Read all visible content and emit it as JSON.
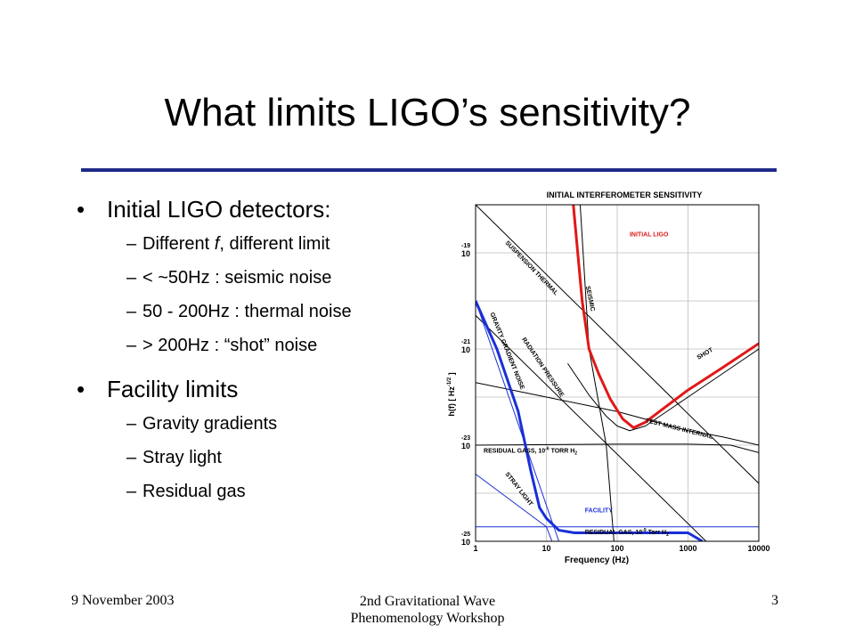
{
  "slide": {
    "title": "What limits LIGO’s sensitivity?",
    "bullets": [
      {
        "text": "Initial LIGO detectors:",
        "sub": [
          "Different f, different limit",
          "< ~50Hz : seismic noise",
          "50 - 200Hz : thermal noise",
          "> 200Hz  : “shot” noise"
        ]
      },
      {
        "text": "Facility limits",
        "sub": [
          "Gravity gradients",
          "Stray light",
          "Residual gas"
        ]
      }
    ],
    "bullet_glyph": "•",
    "dash_glyph": "–"
  },
  "footer": {
    "date": "9 November 2003",
    "workshop_line1": "2nd Gravitational Wave",
    "workshop_line2": "Phenomenology Workshop",
    "page": "3"
  },
  "chart_data": {
    "type": "line",
    "title": "INITIAL INTERFEROMETER SENSITIVITY",
    "xlabel": "Frequency (Hz)",
    "ylabel": "h(f) [ Hz -1/2 ]",
    "xscale": "log",
    "yscale": "log",
    "xlim": [
      1,
      10000
    ],
    "ylim": [
      1e-25,
      1e-18
    ],
    "x_ticks": [
      "1",
      "10",
      "100",
      "1000",
      "10000"
    ],
    "y_ticks": [
      {
        "base": "10",
        "exp": "-19",
        "value": 1e-19
      },
      {
        "base": "10",
        "exp": "-21",
        "value": 1e-21
      },
      {
        "base": "10",
        "exp": "-23",
        "value": 1e-23
      },
      {
        "base": "10",
        "exp": "-25",
        "value": 1e-25
      }
    ],
    "grid": true,
    "colors": {
      "initial": "#e01818",
      "facility": "#1a2fd8",
      "noise": "#000000",
      "grid": "#bdbdbd"
    },
    "series": [
      {
        "name": "INITIAL LIGO",
        "color": "#e01818",
        "width": 3,
        "points": [
          [
            24,
            1e-18
          ],
          [
            32,
            1e-20
          ],
          [
            40,
            1e-21
          ],
          [
            55,
            3e-22
          ],
          [
            80,
            9e-23
          ],
          [
            120,
            3.5e-23
          ],
          [
            170,
            2.3e-23
          ],
          [
            250,
            3e-23
          ],
          [
            500,
            6.5e-23
          ],
          [
            1000,
            1.4e-22
          ],
          [
            3000,
            4e-22
          ],
          [
            10000,
            1.3e-21
          ]
        ]
      },
      {
        "name": "FACILITY",
        "color": "#1a2fd8",
        "width": 3,
        "points": [
          [
            1,
            1e-20
          ],
          [
            2,
            1e-21
          ],
          [
            4,
            5e-23
          ],
          [
            6,
            3e-24
          ],
          [
            8,
            5e-25
          ],
          [
            10,
            3e-25
          ],
          [
            15,
            1.7e-25
          ],
          [
            25,
            1.5e-25
          ],
          [
            100,
            1.5e-25
          ],
          [
            1000,
            1.5e-25
          ],
          [
            1600,
            1e-25
          ]
        ]
      },
      {
        "name": "SUSPENSION THERMAL",
        "color": "#000000",
        "width": 1,
        "points": [
          [
            1,
            1e-18
          ],
          [
            10000,
            1.6e-24
          ]
        ]
      },
      {
        "name": "RADIATION PRESSURE",
        "color": "#000000",
        "width": 1,
        "points": [
          [
            1,
            5e-21
          ],
          [
            1800,
            1e-25
          ]
        ]
      },
      {
        "name": "SEISMIC",
        "color": "#000000",
        "width": 1,
        "points": [
          [
            30,
            1e-18
          ],
          [
            40,
            1e-21
          ],
          [
            70,
            1e-23
          ],
          [
            90,
            1e-25
          ]
        ]
      },
      {
        "name": "SHOT",
        "color": "#000000",
        "width": 1,
        "points": [
          [
            20,
            5e-22
          ],
          [
            40,
            1.1e-22
          ],
          [
            70,
            4e-23
          ],
          [
            100,
            2.5e-23
          ],
          [
            150,
            2e-23
          ],
          [
            250,
            2.5e-23
          ],
          [
            500,
            5e-23
          ],
          [
            1000,
            1e-22
          ],
          [
            3000,
            3e-22
          ],
          [
            10000,
            1e-21
          ]
        ]
      },
      {
        "name": "TEST MASS INTERNAL",
        "color": "#000000",
        "width": 1,
        "points": [
          [
            1,
            2e-22
          ],
          [
            10,
            1e-22
          ],
          [
            100,
            5e-23
          ],
          [
            1000,
            2e-23
          ],
          [
            3000,
            1.5e-23
          ],
          [
            10000,
            1e-23
          ]
        ]
      },
      {
        "name": "GRAVITY GRADIENT NOISE",
        "color": "#1a2fd8",
        "width": 1,
        "points": [
          [
            1,
            1e-20
          ],
          [
            15,
            1e-25
          ]
        ]
      },
      {
        "name": "RESIDUAL GASS, 10-6 TORR H2",
        "color": "#000000",
        "width": 1,
        "points": [
          [
            1,
            1e-23
          ],
          [
            100,
            1.05e-23
          ],
          [
            1000,
            1.05e-23
          ],
          [
            4000,
            1e-23
          ],
          [
            10000,
            7e-24
          ]
        ]
      },
      {
        "name": "STRAY LIGHT",
        "color": "#1a2fd8",
        "width": 1,
        "points": [
          [
            1,
            2.5e-24
          ],
          [
            10,
            2e-25
          ],
          [
            12,
            1e-25
          ]
        ]
      },
      {
        "name": "RESIDUAL GAS, 10-9 TORR H2",
        "color": "#1a2fd8",
        "width": 1,
        "points": [
          [
            1,
            2e-25
          ],
          [
            10000,
            2e-25
          ]
        ]
      }
    ],
    "annotations": [
      {
        "text": "INITIAL LIGO",
        "x": 150,
        "y": 2.2e-19,
        "color": "#e01818",
        "rotate": 0
      },
      {
        "text": "FACILITY",
        "x": 35,
        "y": 4e-25,
        "color": "#1a2fd8",
        "rotate": 0
      },
      {
        "text": "SUSPENSION THERMAL",
        "x": 2.6,
        "y": 1.6e-19,
        "color": "#000000",
        "rotate": 46
      },
      {
        "text": "SEISMIC",
        "x": 36,
        "y": 2e-20,
        "color": "#000000",
        "rotate": 78
      },
      {
        "text": "SHOT",
        "x": 1400,
        "y": 6e-22,
        "color": "#000000",
        "rotate": -30
      },
      {
        "text": "RADIATION PRESSURE",
        "x": 4.5,
        "y": 1.6e-21,
        "color": "#000000",
        "rotate": 56
      },
      {
        "text": "GRAVITY GRADIENT NOISE",
        "x": 1.6,
        "y": 5.5e-21,
        "color": "#000000",
        "rotate": 68
      },
      {
        "text": "TEST MASS INTERNAL",
        "x": 250,
        "y": 3e-23,
        "color": "#000000",
        "rotate": 14
      },
      {
        "text": "RESIDUAL GASS, 10",
        "sup": "-6",
        "tail": " TORR H",
        "sub": "2",
        "x": 1.3,
        "y": 7e-24,
        "color": "#000000",
        "rotate": 0
      },
      {
        "text": "STRAY LIGHT",
        "x": 2.6,
        "y": 2.5e-24,
        "color": "#000000",
        "rotate": 52
      },
      {
        "text": "RESIDUAL GAS, 10",
        "sup": "-9",
        "tail": " Torr H",
        "sub": "2",
        "x": 35,
        "y": 1.4e-25,
        "color": "#000000",
        "rotate": 0
      }
    ]
  }
}
